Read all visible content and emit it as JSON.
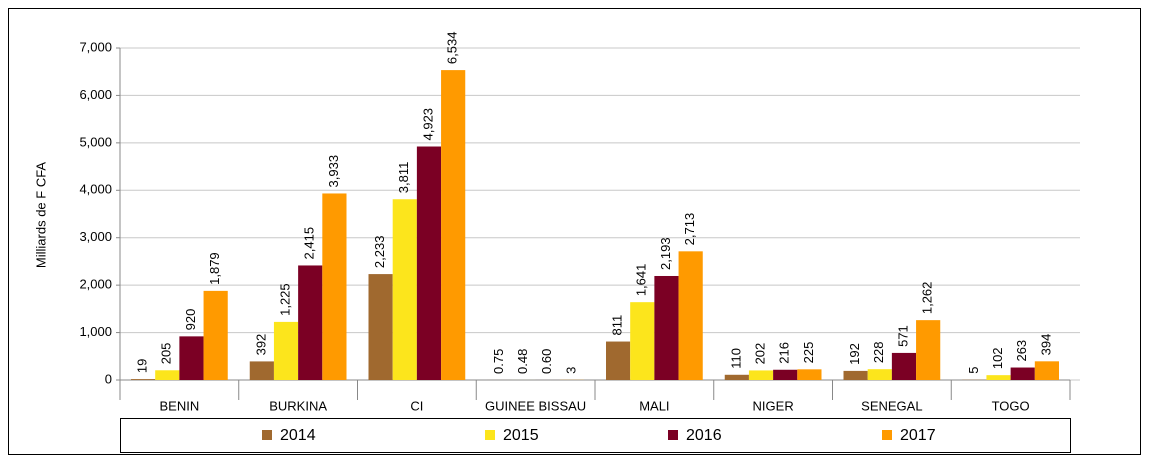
{
  "chart_data": {
    "type": "bar",
    "ylabel": "Milliards de F CFA",
    "categories": [
      "BENIN",
      "BURKINA",
      "CI",
      "GUINEE BISSAU",
      "MALI",
      "NIGER",
      "SENEGAL",
      "TOGO"
    ],
    "series": [
      {
        "name": "2014",
        "color": "#a0692f",
        "values": [
          19,
          392,
          2233,
          0.75,
          811,
          110,
          192,
          5
        ],
        "value_labels": [
          "19",
          "392",
          "2,233",
          "0.75",
          "811",
          "110",
          "192",
          "5"
        ]
      },
      {
        "name": "2015",
        "color": "#fce51c",
        "values": [
          205,
          1225,
          3811,
          0.48,
          1641,
          202,
          228,
          102
        ],
        "value_labels": [
          "205",
          "1,225",
          "3,811",
          "0.48",
          "1,641",
          "202",
          "228",
          "102"
        ]
      },
      {
        "name": "2016",
        "color": "#7b0024",
        "values": [
          920,
          2415,
          4923,
          0.6,
          2193,
          216,
          571,
          263
        ],
        "value_labels": [
          "920",
          "2,415",
          "4,923",
          "0.60",
          "2,193",
          "216",
          "571",
          "263"
        ]
      },
      {
        "name": "2017",
        "color": "#ff9a00",
        "values": [
          1879,
          3933,
          6534,
          3,
          2713,
          225,
          1262,
          394
        ],
        "value_labels": [
          "1,879",
          "3,933",
          "6,534",
          "3",
          "2,713",
          "225",
          "1,262",
          "394"
        ]
      }
    ],
    "ylim": [
      0,
      7000
    ],
    "yticks": [
      0,
      {
        "value": 1000,
        "label": "1,000"
      },
      {
        "value": 2000,
        "label": "2,000"
      },
      {
        "value": 3000,
        "label": "3,000"
      },
      {
        "value": 4000,
        "label": "4,000"
      },
      {
        "value": 5000,
        "label": "5,000"
      },
      {
        "value": 6000,
        "label": "6,000"
      },
      {
        "value": 7000,
        "label": "7,000"
      }
    ],
    "grid": true,
    "legend": "bottom"
  }
}
